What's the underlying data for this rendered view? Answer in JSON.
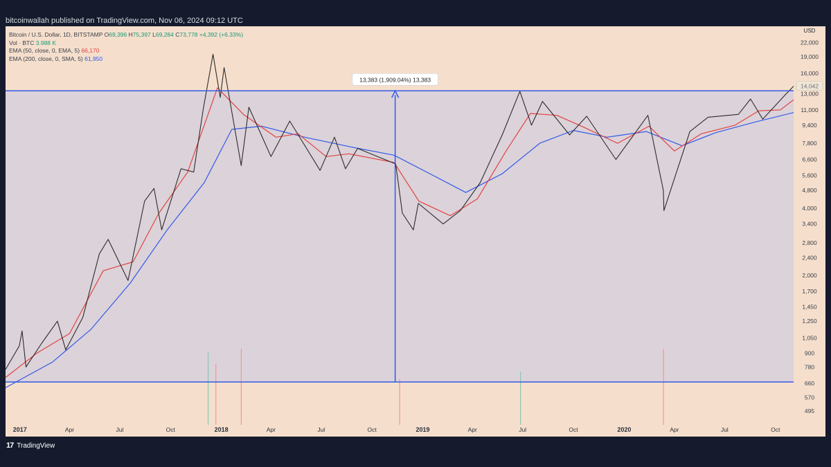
{
  "publisher_line": "bitcoinwallah published on TradingView.com, Nov 06, 2024 09:12 UTC",
  "branding": {
    "logo": "tradingview-logo",
    "name": "TradingView"
  },
  "legend": {
    "symbol": "Bitcoin / U.S. Dollar, 1D, BITSTAMP",
    "ohlc": {
      "o_label": "O",
      "o": "69,396",
      "h_label": "H",
      "h": "75,397",
      "l_label": "L",
      "l": "69,284",
      "c_label": "C",
      "c": "73,778",
      "change": "+4,392 (+6.33%)"
    },
    "vol": {
      "label": "Vol · BTC",
      "value": "3.988 K"
    },
    "ema50": {
      "label": "EMA (50, close, 0, EMA, 5)",
      "value": "66,170"
    },
    "ema200": {
      "label": "EMA (200, close, 0, SMA, 5)",
      "value": "61,950"
    }
  },
  "colors": {
    "background": "#f5dfcc",
    "range_fill": "#d7d0dc",
    "candle_up": "#2b2b2b",
    "ema50": "#e0433f",
    "ema200": "#2f5ae6",
    "range_lines": "#2f5ae6",
    "volume_up": "#8cc6b2",
    "volume_down": "#ee9a90",
    "current_price_badge": "#f0e6d8"
  },
  "chart_data": {
    "type": "line",
    "title": "",
    "y_axis_unit": "USD",
    "y_scale": "log",
    "y_ticks": [
      495,
      570,
      660,
      780,
      900,
      1050,
      1250,
      1450,
      1700,
      2000,
      2400,
      2800,
      3400,
      4000,
      4800,
      5600,
      6600,
      7800,
      9400,
      11000,
      13000,
      16000,
      19000,
      22000
    ],
    "y_tick_labels": [
      "495",
      "570",
      "660",
      "780",
      "900",
      "1,050",
      "1,250",
      "1,450",
      "1,700",
      "2,000",
      "2,400",
      "2,800",
      "3,400",
      "4,000",
      "4,800",
      "5,600",
      "6,600",
      "7,800",
      "9,400",
      "11,000",
      "13,000",
      "16,000",
      "19,000",
      "22,000"
    ],
    "ylim": [
      430,
      26000
    ],
    "x_range": [
      "2016-12-06",
      "2020-11-03"
    ],
    "x_ticks": [
      {
        "date": "2017-01-01",
        "label": "2017",
        "bold": true
      },
      {
        "date": "2017-04-01",
        "label": "Apr",
        "bold": false
      },
      {
        "date": "2017-07-01",
        "label": "Jul",
        "bold": false
      },
      {
        "date": "2017-10-01",
        "label": "Oct",
        "bold": false
      },
      {
        "date": "2018-01-01",
        "label": "2018",
        "bold": true
      },
      {
        "date": "2018-04-01",
        "label": "Apr",
        "bold": false
      },
      {
        "date": "2018-07-01",
        "label": "Jul",
        "bold": false
      },
      {
        "date": "2018-10-01",
        "label": "Oct",
        "bold": false
      },
      {
        "date": "2019-01-01",
        "label": "2019",
        "bold": true
      },
      {
        "date": "2019-04-01",
        "label": "Apr",
        "bold": false
      },
      {
        "date": "2019-07-01",
        "label": "Jul",
        "bold": false
      },
      {
        "date": "2019-10-01",
        "label": "Oct",
        "bold": false
      },
      {
        "date": "2020-01-01",
        "label": "2020",
        "bold": true
      },
      {
        "date": "2020-04-01",
        "label": "Apr",
        "bold": false
      },
      {
        "date": "2020-07-01",
        "label": "Jul",
        "bold": false
      },
      {
        "date": "2020-10-01",
        "label": "Oct",
        "bold": false
      }
    ],
    "series": [
      {
        "name": "Bitcoin / U.S. Dollar, 1D, BITSTAMP",
        "kind": "price",
        "points": [
          [
            "2016-12-06",
            760
          ],
          [
            "2016-12-31",
            970
          ],
          [
            "2017-01-05",
            1130
          ],
          [
            "2017-01-12",
            780
          ],
          [
            "2017-02-10",
            1000
          ],
          [
            "2017-03-10",
            1250
          ],
          [
            "2017-03-25",
            930
          ],
          [
            "2017-04-25",
            1300
          ],
          [
            "2017-05-25",
            2500
          ],
          [
            "2017-06-10",
            2900
          ],
          [
            "2017-07-16",
            1900
          ],
          [
            "2017-08-15",
            4300
          ],
          [
            "2017-09-01",
            4900
          ],
          [
            "2017-09-15",
            3200
          ],
          [
            "2017-10-20",
            6000
          ],
          [
            "2017-11-12",
            5800
          ],
          [
            "2017-11-29",
            11000
          ],
          [
            "2017-12-17",
            19500
          ],
          [
            "2017-12-30",
            12500
          ],
          [
            "2018-01-06",
            17000
          ],
          [
            "2018-02-06",
            6200
          ],
          [
            "2018-02-20",
            11300
          ],
          [
            "2018-04-01",
            6800
          ],
          [
            "2018-05-05",
            9800
          ],
          [
            "2018-06-29",
            5900
          ],
          [
            "2018-07-25",
            8300
          ],
          [
            "2018-08-14",
            6000
          ],
          [
            "2018-09-05",
            7400
          ],
          [
            "2018-11-13",
            6300
          ],
          [
            "2018-11-25",
            3800
          ],
          [
            "2018-12-15",
            3200
          ],
          [
            "2018-12-24",
            4200
          ],
          [
            "2019-02-07",
            3400
          ],
          [
            "2019-03-10",
            3900
          ],
          [
            "2019-04-15",
            5200
          ],
          [
            "2019-05-25",
            8500
          ],
          [
            "2019-06-26",
            13300
          ],
          [
            "2019-07-17",
            9400
          ],
          [
            "2019-08-06",
            12000
          ],
          [
            "2019-09-24",
            8500
          ],
          [
            "2019-10-25",
            10300
          ],
          [
            "2019-12-17",
            6600
          ],
          [
            "2020-02-13",
            10400
          ],
          [
            "2020-03-12",
            4800
          ],
          [
            "2020-03-13",
            3900
          ],
          [
            "2020-04-29",
            8800
          ],
          [
            "2020-06-01",
            10200
          ],
          [
            "2020-07-26",
            10500
          ],
          [
            "2020-08-17",
            12300
          ],
          [
            "2020-09-08",
            10000
          ],
          [
            "2020-10-21",
            13000
          ],
          [
            "2020-11-03",
            14042
          ]
        ]
      },
      {
        "name": "EMA (50, close, 0, EMA, 5)",
        "kind": "ema50",
        "points": [
          [
            "2016-12-06",
            700
          ],
          [
            "2017-02-01",
            900
          ],
          [
            "2017-04-01",
            1100
          ],
          [
            "2017-06-01",
            2100
          ],
          [
            "2017-07-25",
            2300
          ],
          [
            "2017-09-10",
            3800
          ],
          [
            "2017-11-01",
            5800
          ],
          [
            "2017-12-25",
            13800
          ],
          [
            "2018-02-10",
            10500
          ],
          [
            "2018-04-10",
            8300
          ],
          [
            "2018-05-20",
            8600
          ],
          [
            "2018-07-10",
            6800
          ],
          [
            "2018-08-20",
            7000
          ],
          [
            "2018-11-10",
            6400
          ],
          [
            "2018-12-25",
            4300
          ],
          [
            "2019-02-20",
            3700
          ],
          [
            "2019-04-10",
            4400
          ],
          [
            "2019-06-01",
            7200
          ],
          [
            "2019-07-15",
            10600
          ],
          [
            "2019-09-01",
            10400
          ],
          [
            "2019-10-20",
            9200
          ],
          [
            "2019-12-20",
            7800
          ],
          [
            "2020-02-15",
            9300
          ],
          [
            "2020-04-01",
            7200
          ],
          [
            "2020-05-20",
            8600
          ],
          [
            "2020-07-20",
            9400
          ],
          [
            "2020-09-01",
            10900
          ],
          [
            "2020-10-10",
            11000
          ],
          [
            "2020-11-03",
            12200
          ]
        ]
      },
      {
        "name": "EMA (200, close, 0, SMA, 5)",
        "kind": "ema200",
        "points": [
          [
            "2016-12-06",
            630
          ],
          [
            "2017-03-01",
            820
          ],
          [
            "2017-05-10",
            1150
          ],
          [
            "2017-07-20",
            1850
          ],
          [
            "2017-09-25",
            3200
          ],
          [
            "2017-12-01",
            5200
          ],
          [
            "2018-01-20",
            9000
          ],
          [
            "2018-03-15",
            9300
          ],
          [
            "2018-06-01",
            8300
          ],
          [
            "2018-08-25",
            7500
          ],
          [
            "2018-11-10",
            6900
          ],
          [
            "2019-01-20",
            5600
          ],
          [
            "2019-03-20",
            4700
          ],
          [
            "2019-05-25",
            5700
          ],
          [
            "2019-08-01",
            7800
          ],
          [
            "2019-10-01",
            8900
          ],
          [
            "2019-12-01",
            8300
          ],
          [
            "2020-02-10",
            8800
          ],
          [
            "2020-04-15",
            7600
          ],
          [
            "2020-06-15",
            8700
          ],
          [
            "2020-08-25",
            9700
          ],
          [
            "2020-11-03",
            10700
          ]
        ]
      }
    ],
    "volume_scale_max": 10,
    "volume": [
      {
        "date": "2017-12-08",
        "value": 9.5,
        "up": true
      },
      {
        "date": "2017-12-22",
        "value": 8,
        "up": false
      },
      {
        "date": "2018-02-06",
        "value": 10,
        "up": false
      },
      {
        "date": "2020-03-12",
        "value": 10,
        "up": false
      },
      {
        "date": "2019-06-27",
        "value": 7,
        "up": true
      },
      {
        "date": "2018-11-20",
        "value": 6,
        "up": false
      }
    ],
    "range_annotation": {
      "top": 13383,
      "bottom": 668,
      "label": "13,383 (1,909.04%) 13,383",
      "x_date": "2018-11-12"
    },
    "current_price": {
      "value": 14042,
      "label": "14,042"
    }
  }
}
